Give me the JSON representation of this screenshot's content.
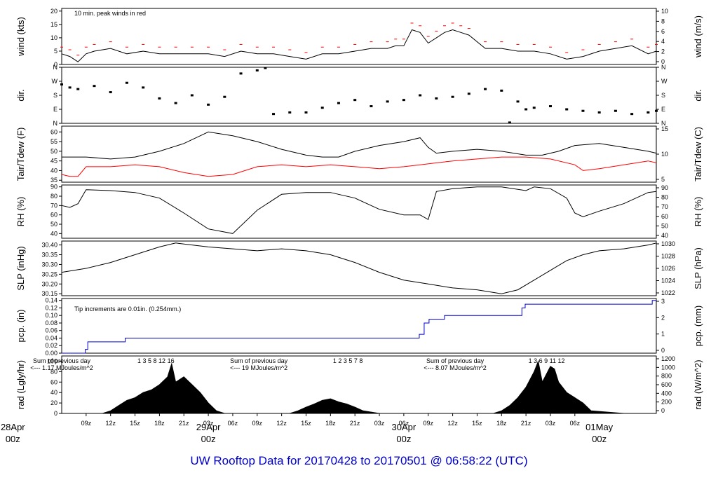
{
  "title": "UW Rooftop Data for 20170428  to  20170501 @ 06:58:22  (UTC)",
  "colors": {
    "primary": "#000000",
    "red": "#ff0000",
    "blue": "#0000cc",
    "purple": "#9900cc",
    "title": "#0000cc"
  },
  "x_axis": {
    "ticks": [
      "09z",
      "12z",
      "15z",
      "18z",
      "21z",
      "03z",
      "06z",
      "09z",
      "12z",
      "15z",
      "18z",
      "21z",
      "03z",
      "06z",
      "09z",
      "12z",
      "15z",
      "18z",
      "21z",
      "03z",
      "06z"
    ],
    "day_labels": [
      {
        "label": "28Apr",
        "sub": "00z",
        "hour": 0
      },
      {
        "label": "29Apr",
        "sub": "00z",
        "hour": 24
      },
      {
        "label": "30Apr",
        "sub": "00z",
        "hour": 48
      },
      {
        "label": "01May",
        "sub": "00z",
        "hour": 72
      }
    ]
  },
  "annotations": {
    "wind_note": "10 min. peak winds in red",
    "pcp_note": "Tip increments are 0.01in. (0.254mm.)",
    "rad_notes": [
      {
        "line1": "Sum of previous day",
        "line2": "<--- 1.17 MJoules/m^2",
        "hour": 6.0
      },
      {
        "line1": "Sum of previous day",
        "line2": "<--- 19 MJoules/m^2",
        "hour": 30.2
      },
      {
        "line1": "Sum of previous day",
        "line2": "<--- 8.07 MJoules/m^2",
        "hour": 54.3
      }
    ],
    "rad_tick_groups": [
      {
        "text": "1    3     5    8    12   16",
        "hour": 15.3
      },
      {
        "text": "1    2    3     5        7          8",
        "hour": 39.3
      },
      {
        "text": "1     3    6    9      11   12",
        "hour": 63.3
      }
    ]
  },
  "chart_data": [
    {
      "type": "line",
      "name": "wind",
      "ylabel": "wind (kts)",
      "ylabel_right": "wind (m/s)",
      "ylim": [
        0,
        21
      ],
      "yticks": [
        0,
        5,
        10,
        15,
        20
      ],
      "yticks_right": [
        0,
        2,
        4,
        6,
        8,
        10
      ],
      "hours": [
        6,
        7,
        8,
        9,
        10,
        12,
        14,
        16,
        18,
        20,
        22,
        24,
        26,
        28,
        30,
        32,
        34,
        36,
        38,
        40,
        42,
        44,
        46,
        47,
        48,
        49,
        50,
        51,
        52,
        53,
        54,
        55,
        56,
        58,
        60,
        62,
        64,
        66,
        68,
        70,
        72,
        74,
        76,
        78,
        79
      ],
      "values": [
        4,
        3,
        1,
        4,
        5,
        6,
        4,
        5,
        4,
        4,
        4,
        4,
        3,
        5,
        4,
        4,
        3,
        2,
        4,
        4,
        5,
        6,
        6,
        7,
        7,
        13,
        12,
        8,
        10,
        12,
        13,
        12,
        11,
        6,
        6,
        5,
        5,
        4,
        2,
        3,
        5,
        6,
        7,
        4,
        5
      ]
    },
    {
      "type": "scatter",
      "name": "dir",
      "ylabel": "dir.",
      "ylabel_right": "dir.",
      "ylim": [
        0,
        360
      ],
      "yticks": [
        "N",
        "E",
        "S",
        "W",
        "N"
      ],
      "yticks_right": [
        "N",
        "E",
        "S",
        "W",
        "N"
      ],
      "hours": [
        6,
        7,
        8,
        10,
        12,
        14,
        16,
        18,
        20,
        22,
        24,
        26,
        28,
        30,
        31,
        32,
        34,
        36,
        38,
        40,
        42,
        44,
        46,
        48,
        50,
        52,
        54,
        56,
        58,
        60,
        61,
        62,
        63,
        64,
        66,
        68,
        70,
        72,
        74,
        76,
        78,
        79
      ],
      "values": [
        250,
        230,
        220,
        240,
        200,
        260,
        230,
        160,
        130,
        180,
        120,
        170,
        320,
        340,
        355,
        60,
        70,
        70,
        100,
        130,
        150,
        110,
        140,
        150,
        180,
        160,
        170,
        190,
        220,
        210,
        5,
        140,
        90,
        100,
        110,
        90,
        80,
        70,
        80,
        60,
        70,
        80
      ]
    },
    {
      "type": "line",
      "name": "tair_tdew",
      "ylabel": "Tair/Tdew (F)",
      "ylabel_right": "Tair/Tdew (C)",
      "ylim": [
        34,
        63
      ],
      "yticks": [
        35,
        40,
        45,
        50,
        55,
        60
      ],
      "yticks_right": [
        5,
        10,
        15
      ],
      "series": [
        {
          "name": "Tair",
          "color": "#000000",
          "hours": [
            6,
            9,
            12,
            15,
            18,
            21,
            23,
            24,
            27,
            30,
            33,
            36,
            38,
            40,
            42,
            45,
            48,
            50,
            51,
            52,
            54,
            57,
            60,
            63,
            65,
            67,
            69,
            72,
            75,
            78,
            79
          ],
          "values": [
            47,
            47,
            46,
            47,
            50,
            54,
            58,
            60,
            58,
            55,
            51,
            48,
            47,
            47,
            50,
            53,
            55,
            57,
            52,
            49,
            50,
            51,
            50,
            48,
            48,
            50,
            53,
            54,
            52,
            50,
            49
          ]
        },
        {
          "name": "Tdew",
          "color": "#ff0000",
          "hours": [
            6,
            7,
            8,
            9,
            12,
            15,
            18,
            21,
            24,
            27,
            30,
            33,
            36,
            39,
            42,
            45,
            48,
            50,
            52,
            54,
            57,
            60,
            63,
            66,
            69,
            70,
            72,
            75,
            78,
            79
          ],
          "values": [
            38,
            37,
            37,
            42,
            42,
            43,
            42,
            39,
            37,
            38,
            42,
            43,
            42,
            43,
            42,
            41,
            42,
            43,
            44,
            45,
            46,
            47,
            47,
            46,
            43,
            40,
            41,
            43,
            45,
            44
          ]
        }
      ]
    },
    {
      "type": "line",
      "name": "rh",
      "ylabel": "RH (%)",
      "ylabel_right": "RH (%)",
      "ylim": [
        35,
        92
      ],
      "yticks": [
        40,
        50,
        60,
        70,
        80,
        90
      ],
      "yticks_right": [
        40,
        50,
        60,
        70,
        80,
        90
      ],
      "hours": [
        6,
        7,
        8,
        9,
        12,
        15,
        18,
        21,
        24,
        27,
        30,
        33,
        36,
        39,
        42,
        45,
        48,
        50,
        51,
        52,
        54,
        57,
        60,
        63,
        64,
        66,
        68,
        69,
        70,
        72,
        75,
        78,
        79
      ],
      "values": [
        70,
        68,
        72,
        87,
        86,
        84,
        78,
        62,
        45,
        40,
        65,
        82,
        84,
        84,
        78,
        66,
        60,
        60,
        55,
        85,
        88,
        90,
        90,
        86,
        90,
        88,
        78,
        62,
        58,
        64,
        72,
        84,
        85
      ]
    },
    {
      "type": "line",
      "name": "slp",
      "ylabel": "SLP (inHg)",
      "ylabel_right": "SLP (hPa)",
      "ylim": [
        30.14,
        30.42
      ],
      "yticks": [
        30.15,
        30.2,
        30.25,
        30.3,
        30.35,
        30.4
      ],
      "yticks_right": [
        1022,
        1024,
        1026,
        1028,
        1030
      ],
      "hours": [
        6,
        9,
        12,
        15,
        18,
        20,
        22,
        24,
        27,
        30,
        33,
        36,
        39,
        42,
        45,
        48,
        51,
        54,
        57,
        60,
        62,
        64,
        66,
        68,
        70,
        72,
        75,
        78,
        79
      ],
      "values": [
        30.26,
        30.28,
        30.31,
        30.35,
        30.39,
        30.41,
        30.4,
        30.39,
        30.38,
        30.37,
        30.38,
        30.37,
        30.35,
        30.31,
        30.26,
        30.22,
        30.2,
        30.18,
        30.17,
        30.15,
        30.17,
        30.22,
        30.27,
        30.32,
        30.35,
        30.37,
        30.38,
        30.4,
        30.41
      ]
    },
    {
      "type": "line",
      "name": "pcp",
      "ylabel": "pcp. (in)",
      "ylabel_right": "pcp. (mm)",
      "ylim": [
        0,
        0.145
      ],
      "yticks": [
        0.0,
        0.02,
        0.04,
        0.06,
        0.08,
        0.1,
        0.12,
        0.14
      ],
      "yticks_right": [
        0,
        1,
        2,
        3
      ],
      "hours": [
        6,
        8.9,
        9.2,
        13.8,
        49.9,
        50.5,
        51.1,
        53.0,
        62.5,
        62.9,
        78.5,
        79
      ],
      "values": [
        0.0,
        0.01,
        0.03,
        0.04,
        0.05,
        0.08,
        0.09,
        0.1,
        0.12,
        0.13,
        0.14,
        0.14
      ]
    },
    {
      "type": "area",
      "name": "rad",
      "ylabel": "rad (Lgly/hr)",
      "ylabel_right": "rad (W/m^2)",
      "ylim": [
        0,
        110
      ],
      "yticks": [
        0,
        20,
        40,
        60,
        80,
        100
      ],
      "yticks_right": [
        0,
        200,
        400,
        600,
        800,
        1000,
        1200
      ],
      "hours": [
        6,
        11,
        12,
        13,
        14,
        15,
        16,
        17,
        18,
        19,
        19.5,
        20,
        21,
        22,
        23,
        24,
        25,
        26,
        34,
        35,
        36,
        37,
        38,
        39,
        40,
        41,
        42,
        43,
        45,
        59,
        60,
        61,
        62,
        63,
        64,
        64.5,
        65,
        66,
        66.5,
        67,
        68,
        69,
        70,
        71,
        75
      ],
      "values": [
        0,
        0,
        5,
        15,
        25,
        30,
        40,
        45,
        55,
        70,
        95,
        60,
        70,
        55,
        40,
        20,
        5,
        0,
        0,
        5,
        12,
        18,
        25,
        28,
        22,
        18,
        12,
        5,
        0,
        0,
        5,
        15,
        30,
        50,
        80,
        100,
        60,
        90,
        85,
        60,
        40,
        30,
        20,
        5,
        0
      ]
    }
  ]
}
